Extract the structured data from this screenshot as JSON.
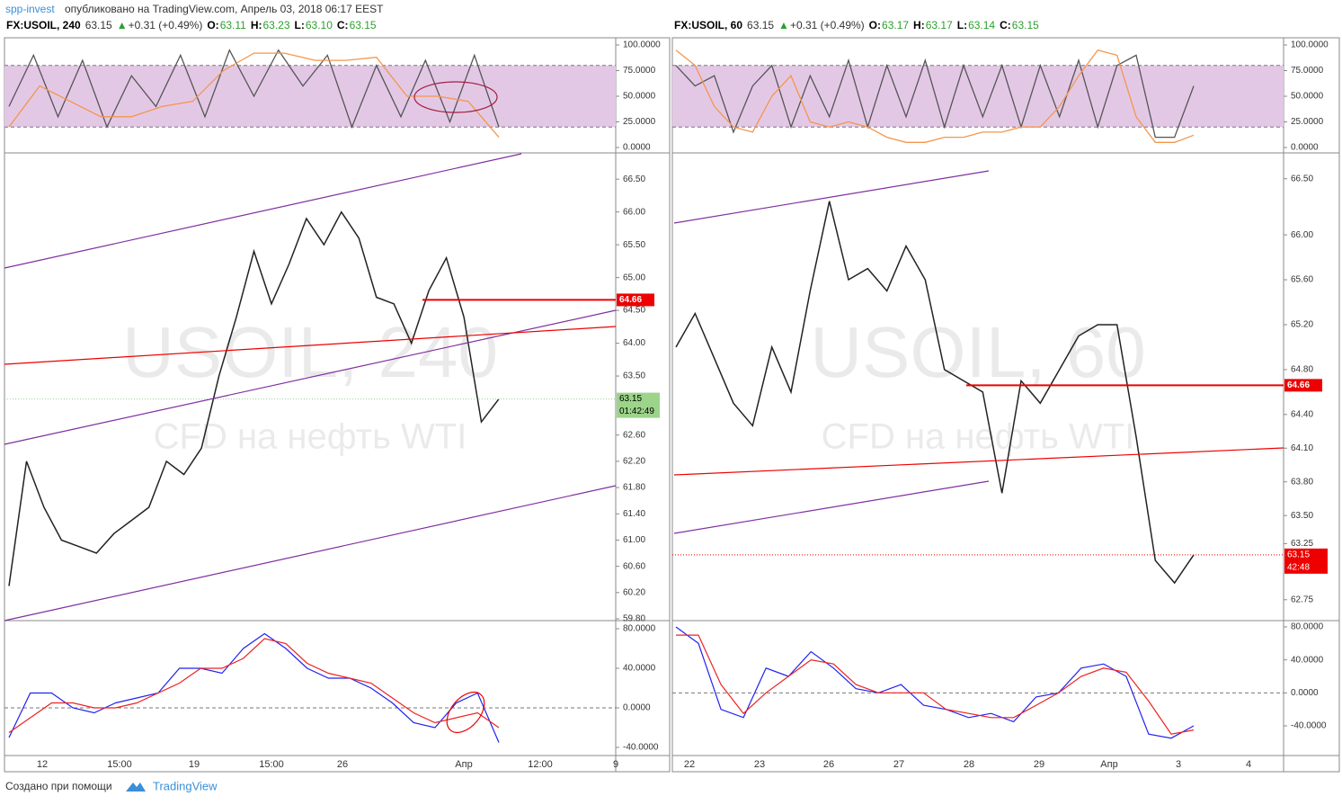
{
  "header": {
    "author": "spp-invest",
    "published": "опубликовано на TradingView.com, Апрель 03, 2018 06:17 EEST"
  },
  "footer": {
    "made": "Создано при помощи",
    "brand": "TradingView"
  },
  "panels": [
    {
      "symbol": "FX:USOIL, 240",
      "quote": {
        "last": "63.15",
        "arrow": "▲",
        "change": "+0.31 (+0.49%)",
        "o_label": "O:",
        "o": "63.11",
        "h_label": "H:",
        "h": "63.23",
        "l_label": "L:",
        "l": "63.10",
        "c_label": "C:",
        "c": "63.15"
      },
      "watermark": "USOIL, 240",
      "watermark_sub": "CFD на нефть WTI",
      "price": {
        "ylim": [
          59.8,
          66.9
        ],
        "yticks": [
          {
            "value": 66.5,
            "label": "66.50"
          },
          {
            "value": 66,
            "label": "66.00"
          },
          {
            "value": 65.5,
            "label": "65.50"
          },
          {
            "value": 65,
            "label": "65.00"
          },
          {
            "value": 64.5,
            "label": "64.50"
          },
          {
            "value": 64,
            "label": "64.00"
          },
          {
            "value": 63.5,
            "label": "63.50"
          },
          {
            "value": 62.6,
            "label": "62.60"
          },
          {
            "value": 62.2,
            "label": "62.20"
          },
          {
            "value": 61.8,
            "label": "61.80"
          },
          {
            "value": 61.4,
            "label": "61.40"
          },
          {
            "value": 61,
            "label": "61.00"
          },
          {
            "value": 60.6,
            "label": "60.60"
          },
          {
            "value": 60.2,
            "label": "60.20"
          },
          {
            "value": 59.8,
            "label": "59.80"
          }
        ],
        "level": {
          "value": 64.66,
          "label": "64.66"
        },
        "last": {
          "value": 63.15,
          "label": "63.15"
        },
        "timer": "01:42:49",
        "values": [
          60.3,
          62.2,
          61.5,
          61.0,
          60.9,
          60.8,
          61.1,
          61.3,
          61.5,
          62.2,
          62.0,
          62.4,
          63.5,
          64.4,
          65.4,
          64.6,
          65.2,
          65.9,
          65.5,
          66.0,
          65.6,
          64.7,
          64.6,
          64.0,
          64.8,
          65.3,
          64.4,
          62.8,
          63.15
        ]
      },
      "rsi": {
        "ylim": [
          -3.5,
          107
        ],
        "bands": [
          20,
          80
        ],
        "yticks": [
          {
            "value": 100,
            "label": "100.0000"
          },
          {
            "value": 75,
            "label": "75.0000"
          },
          {
            "value": 50,
            "label": "50.0000"
          },
          {
            "value": 25,
            "label": "25.0000"
          },
          {
            "value": 0,
            "label": "0.0000"
          }
        ],
        "series": [
          {
            "color": "#555555",
            "values": [
              40,
              90,
              30,
              85,
              20,
              70,
              40,
              90,
              30,
              95,
              50,
              95,
              60,
              90,
              20,
              80,
              30,
              85,
              25,
              90,
              20
            ]
          },
          {
            "color": "#f4964c",
            "values": [
              20,
              60,
              45,
              30,
              30,
              40,
              45,
              75,
              92,
              92,
              85,
              85,
              88,
              50,
              50,
              45,
              10
            ]
          }
        ]
      },
      "stoch": {
        "ylim": [
          -48.2,
          88.2
        ],
        "yticks": [
          {
            "value": 80,
            "label": "80.0000"
          },
          {
            "value": 40,
            "label": "40.0000"
          },
          {
            "value": 0,
            "label": "0.0000"
          },
          {
            "value": -40,
            "label": "-40.0000"
          }
        ],
        "series": [
          {
            "color": "#2222ee",
            "values": [
              -30,
              15,
              15,
              0,
              -5,
              5,
              10,
              15,
              40,
              40,
              35,
              60,
              75,
              60,
              40,
              30,
              30,
              20,
              5,
              -15,
              -20,
              5,
              15,
              -35
            ]
          },
          {
            "color": "#ee2222",
            "values": [
              -25,
              -10,
              5,
              5,
              0,
              0,
              5,
              15,
              25,
              40,
              40,
              50,
              70,
              65,
              45,
              35,
              30,
              25,
              10,
              -5,
              -15,
              -10,
              -5,
              -20
            ]
          }
        ]
      },
      "xlabels": [
        "12",
        "15:00",
        "19",
        "15:00",
        "26",
        "Апр",
        "12:00",
        "9"
      ]
    },
    {
      "symbol": "FX:USOIL, 60",
      "quote": {
        "last": "63.15",
        "arrow": "▲",
        "change": "+0.31 (+0.49%)",
        "o_label": "O:",
        "o": "63.17",
        "h_label": "H:",
        "h": "63.17",
        "l_label": "L:",
        "l": "63.14",
        "c_label": "C:",
        "c": "63.15"
      },
      "watermark": "USOIL, 60",
      "watermark_sub": "CFD на нефть WTI",
      "price": {
        "ylim": [
          62.58,
          66.73
        ],
        "yticks": [
          {
            "value": 66.5,
            "label": "66.50"
          },
          {
            "value": 66,
            "label": "66.00"
          },
          {
            "value": 65.6,
            "label": "65.60"
          },
          {
            "value": 65.2,
            "label": "65.20"
          },
          {
            "value": 64.8,
            "label": "64.80"
          },
          {
            "value": 64.4,
            "label": "64.40"
          },
          {
            "value": 64.1,
            "label": "64.10"
          },
          {
            "value": 63.8,
            "label": "63.80"
          },
          {
            "value": 63.5,
            "label": "63.50"
          },
          {
            "value": 63.25,
            "label": "63.25"
          },
          {
            "value": 62.75,
            "label": "62.75"
          }
        ],
        "level": {
          "value": 64.66,
          "label": "64.66"
        },
        "last": {
          "value": 63.15,
          "label": "63.15"
        },
        "timer": "42:48",
        "values": [
          65.0,
          65.3,
          64.9,
          64.5,
          64.3,
          65.0,
          64.6,
          65.5,
          66.3,
          65.6,
          65.7,
          65.5,
          65.9,
          65.6,
          64.8,
          64.7,
          64.6,
          63.7,
          64.7,
          64.5,
          64.8,
          65.1,
          65.2,
          65.2,
          64.2,
          63.1,
          62.9,
          63.15
        ]
      },
      "rsi": {
        "ylim": [
          -3.5,
          107
        ],
        "bands": [
          20,
          80
        ],
        "yticks": [
          {
            "value": 100,
            "label": "100.0000"
          },
          {
            "value": 75,
            "label": "75.0000"
          },
          {
            "value": 50,
            "label": "50.0000"
          },
          {
            "value": 25,
            "label": "25.0000"
          },
          {
            "value": 0,
            "label": "0.0000"
          }
        ],
        "series": [
          {
            "color": "#555555",
            "values": [
              80,
              60,
              70,
              15,
              60,
              80,
              20,
              70,
              30,
              85,
              20,
              80,
              30,
              85,
              20,
              80,
              30,
              80,
              20,
              80,
              30,
              85,
              20,
              80,
              90,
              10,
              10,
              60
            ]
          },
          {
            "color": "#f4964c",
            "values": [
              95,
              80,
              40,
              20,
              15,
              50,
              70,
              25,
              20,
              25,
              20,
              10,
              5,
              5,
              10,
              10,
              15,
              15,
              20,
              20,
              40,
              70,
              95,
              90,
              30,
              5,
              5,
              12
            ]
          }
        ]
      },
      "stoch": {
        "ylim": [
          -76,
          87.6
        ],
        "yticks": [
          {
            "value": 80,
            "label": "80.0000"
          },
          {
            "value": 40,
            "label": "40.0000"
          },
          {
            "value": 0,
            "label": "0.0000"
          },
          {
            "value": -40,
            "label": "-40.0000"
          }
        ],
        "series": [
          {
            "color": "#2222ee",
            "values": [
              80,
              60,
              -20,
              -30,
              30,
              20,
              50,
              30,
              5,
              0,
              10,
              -15,
              -20,
              -30,
              -25,
              -35,
              -5,
              0,
              30,
              35,
              20,
              -50,
              -55,
              -40
            ]
          },
          {
            "color": "#ee2222",
            "values": [
              70,
              70,
              10,
              -25,
              0,
              20,
              40,
              35,
              10,
              0,
              0,
              0,
              -20,
              -25,
              -30,
              -30,
              -15,
              0,
              20,
              30,
              25,
              -10,
              -50,
              -45
            ]
          }
        ]
      },
      "xlabels": [
        "22",
        "23",
        "26",
        "27",
        "28",
        "29",
        "Апр",
        "3",
        "4"
      ]
    }
  ]
}
